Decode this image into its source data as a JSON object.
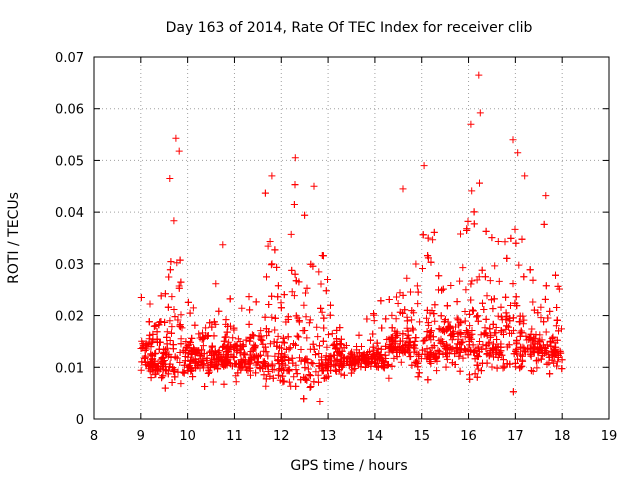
{
  "chart_data": {
    "type": "scatter",
    "title": "Day 163 of 2014, Rate Of TEC Index for receiver clib",
    "xlabel": "GPS time / hours",
    "ylabel": "ROTI / TECUs",
    "xlim": [
      8,
      19
    ],
    "ylim": [
      0,
      0.07
    ],
    "x_ticks": [
      "8",
      "9",
      "10",
      "11",
      "12",
      "13",
      "14",
      "15",
      "16",
      "17",
      "18",
      "19"
    ],
    "y_ticks": [
      "0",
      "0.01",
      "0.02",
      "0.03",
      "0.04",
      "0.05",
      "0.06",
      "0.07"
    ],
    "grid": true,
    "marker": "+",
    "color": "#ff0000",
    "data_range": [
      9.0,
      18.0
    ],
    "notable_points": [
      {
        "x": 9.75,
        "y": 0.0543
      },
      {
        "x": 9.82,
        "y": 0.0518
      },
      {
        "x": 9.62,
        "y": 0.0465
      },
      {
        "x": 10.75,
        "y": 0.0337
      },
      {
        "x": 11.8,
        "y": 0.047
      },
      {
        "x": 12.3,
        "y": 0.0505
      },
      {
        "x": 12.7,
        "y": 0.045
      },
      {
        "x": 14.6,
        "y": 0.0445
      },
      {
        "x": 15.05,
        "y": 0.049
      },
      {
        "x": 16.05,
        "y": 0.057
      },
      {
        "x": 16.22,
        "y": 0.0665
      },
      {
        "x": 16.25,
        "y": 0.0592
      },
      {
        "x": 16.95,
        "y": 0.054
      },
      {
        "x": 17.05,
        "y": 0.0515
      },
      {
        "x": 17.2,
        "y": 0.047
      },
      {
        "x": 17.65,
        "y": 0.0432
      }
    ]
  }
}
